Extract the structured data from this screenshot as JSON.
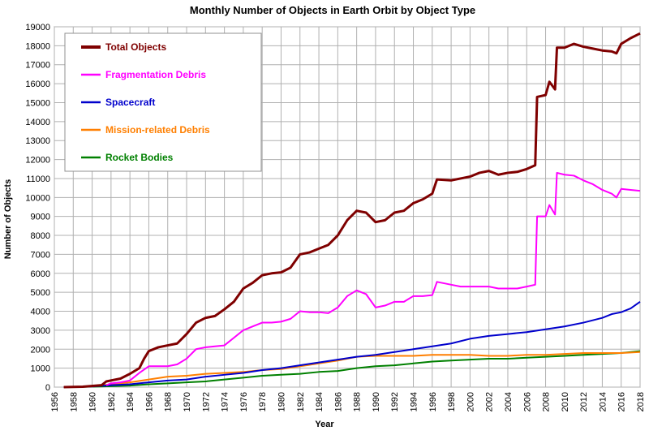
{
  "chart_data": {
    "type": "line",
    "title": "Monthly Number of Objects in Earth Orbit by Object Type",
    "xlabel": "Year",
    "ylabel": "Number of Objects",
    "xlim": [
      1956,
      2018
    ],
    "ylim": [
      0,
      19000
    ],
    "x_ticks": [
      "1956",
      "1958",
      "1960",
      "1962",
      "1964",
      "1966",
      "1968",
      "1970",
      "1972",
      "1974",
      "1976",
      "1978",
      "1980",
      "1982",
      "1984",
      "1986",
      "1988",
      "1990",
      "1992",
      "1994",
      "1996",
      "1998",
      "2000",
      "2002",
      "2004",
      "2006",
      "2008",
      "2010",
      "2012",
      "2014",
      "2016",
      "2018"
    ],
    "y_ticks": [
      "0",
      "1000",
      "2000",
      "3000",
      "4000",
      "5000",
      "6000",
      "7000",
      "8000",
      "9000",
      "10000",
      "11000",
      "12000",
      "13000",
      "14000",
      "15000",
      "16000",
      "17000",
      "18000",
      "19000"
    ],
    "grid": true,
    "legend_position": "top-left",
    "series": [
      {
        "name": "Total Objects",
        "color": "#7f0000",
        "points": [
          [
            1957,
            0
          ],
          [
            1959,
            20
          ],
          [
            1961,
            100
          ],
          [
            1961.5,
            300
          ],
          [
            1962,
            350
          ],
          [
            1963,
            450
          ],
          [
            1964,
            700
          ],
          [
            1965,
            1000
          ],
          [
            1965.5,
            1500
          ],
          [
            1966,
            1900
          ],
          [
            1967,
            2100
          ],
          [
            1968,
            2200
          ],
          [
            1969,
            2300
          ],
          [
            1970,
            2800
          ],
          [
            1971,
            3400
          ],
          [
            1972,
            3650
          ],
          [
            1973,
            3750
          ],
          [
            1974,
            4100
          ],
          [
            1975,
            4500
          ],
          [
            1976,
            5200
          ],
          [
            1977,
            5500
          ],
          [
            1978,
            5900
          ],
          [
            1979,
            6000
          ],
          [
            1980,
            6050
          ],
          [
            1981,
            6300
          ],
          [
            1982,
            7000
          ],
          [
            1983,
            7100
          ],
          [
            1984,
            7300
          ],
          [
            1985,
            7500
          ],
          [
            1986,
            8000
          ],
          [
            1987,
            8800
          ],
          [
            1988,
            9300
          ],
          [
            1989,
            9200
          ],
          [
            1990,
            8700
          ],
          [
            1991,
            8800
          ],
          [
            1992,
            9200
          ],
          [
            1993,
            9300
          ],
          [
            1994,
            9700
          ],
          [
            1995,
            9900
          ],
          [
            1996,
            10200
          ],
          [
            1996.5,
            10950
          ],
          [
            1998,
            10900
          ],
          [
            1999,
            11000
          ],
          [
            2000,
            11100
          ],
          [
            2001,
            11300
          ],
          [
            2002,
            11400
          ],
          [
            2003,
            11200
          ],
          [
            2004,
            11300
          ],
          [
            2005,
            11350
          ],
          [
            2006,
            11500
          ],
          [
            2006.9,
            11700
          ],
          [
            2007.1,
            15300
          ],
          [
            2008,
            15400
          ],
          [
            2008.4,
            16100
          ],
          [
            2009,
            15700
          ],
          [
            2009.2,
            17900
          ],
          [
            2010,
            17900
          ],
          [
            2011,
            18100
          ],
          [
            2012,
            17950
          ],
          [
            2013,
            17850
          ],
          [
            2014,
            17750
          ],
          [
            2015,
            17700
          ],
          [
            2015.5,
            17600
          ],
          [
            2016,
            18100
          ],
          [
            2017,
            18400
          ],
          [
            2018,
            18650
          ]
        ]
      },
      {
        "name": "Fragmentation Debris",
        "color": "#ff00ff",
        "points": [
          [
            1961.5,
            100
          ],
          [
            1962,
            200
          ],
          [
            1963,
            250
          ],
          [
            1964,
            350
          ],
          [
            1965,
            750
          ],
          [
            1966,
            1100
          ],
          [
            1967,
            1100
          ],
          [
            1968,
            1100
          ],
          [
            1969,
            1200
          ],
          [
            1970,
            1500
          ],
          [
            1971,
            2000
          ],
          [
            1972,
            2100
          ],
          [
            1973,
            2150
          ],
          [
            1974,
            2200
          ],
          [
            1975,
            2600
          ],
          [
            1976,
            3000
          ],
          [
            1977,
            3200
          ],
          [
            1978,
            3400
          ],
          [
            1979,
            3400
          ],
          [
            1980,
            3450
          ],
          [
            1981,
            3600
          ],
          [
            1982,
            4000
          ],
          [
            1983,
            3950
          ],
          [
            1984,
            3950
          ],
          [
            1985,
            3900
          ],
          [
            1986,
            4200
          ],
          [
            1987,
            4800
          ],
          [
            1988,
            5100
          ],
          [
            1989,
            4900
          ],
          [
            1990,
            4200
          ],
          [
            1991,
            4300
          ],
          [
            1992,
            4500
          ],
          [
            1993,
            4500
          ],
          [
            1994,
            4800
          ],
          [
            1995,
            4800
          ],
          [
            1996,
            4850
          ],
          [
            1996.5,
            5550
          ],
          [
            1998,
            5400
          ],
          [
            1999,
            5300
          ],
          [
            2000,
            5300
          ],
          [
            2001,
            5300
          ],
          [
            2002,
            5300
          ],
          [
            2003,
            5200
          ],
          [
            2004,
            5200
          ],
          [
            2005,
            5200
          ],
          [
            2006,
            5300
          ],
          [
            2006.9,
            5400
          ],
          [
            2007.1,
            9000
          ],
          [
            2008,
            9000
          ],
          [
            2008.4,
            9600
          ],
          [
            2009,
            9100
          ],
          [
            2009.2,
            11300
          ],
          [
            2010,
            11200
          ],
          [
            2011,
            11150
          ],
          [
            2012,
            10900
          ],
          [
            2013,
            10700
          ],
          [
            2014,
            10400
          ],
          [
            2015,
            10200
          ],
          [
            2015.5,
            10000
          ],
          [
            2016,
            10450
          ],
          [
            2017,
            10400
          ],
          [
            2018,
            10350
          ]
        ]
      },
      {
        "name": "Spacecraft",
        "color": "#0000cc",
        "points": [
          [
            1957,
            0
          ],
          [
            1960,
            30
          ],
          [
            1962,
            100
          ],
          [
            1964,
            150
          ],
          [
            1966,
            250
          ],
          [
            1968,
            350
          ],
          [
            1970,
            400
          ],
          [
            1972,
            550
          ],
          [
            1974,
            650
          ],
          [
            1976,
            750
          ],
          [
            1978,
            900
          ],
          [
            1980,
            1000
          ],
          [
            1982,
            1150
          ],
          [
            1984,
            1300
          ],
          [
            1986,
            1450
          ],
          [
            1988,
            1600
          ],
          [
            1990,
            1700
          ],
          [
            1992,
            1850
          ],
          [
            1994,
            2000
          ],
          [
            1996,
            2150
          ],
          [
            1998,
            2300
          ],
          [
            2000,
            2550
          ],
          [
            2002,
            2700
          ],
          [
            2004,
            2800
          ],
          [
            2006,
            2900
          ],
          [
            2008,
            3050
          ],
          [
            2010,
            3200
          ],
          [
            2012,
            3400
          ],
          [
            2014,
            3650
          ],
          [
            2015,
            3850
          ],
          [
            2016,
            3950
          ],
          [
            2017,
            4150
          ],
          [
            2018,
            4500
          ]
        ]
      },
      {
        "name": "Mission-related Debris",
        "color": "#ff7f00",
        "points": [
          [
            1957,
            0
          ],
          [
            1960,
            30
          ],
          [
            1962,
            150
          ],
          [
            1964,
            250
          ],
          [
            1966,
            400
          ],
          [
            1968,
            550
          ],
          [
            1970,
            600
          ],
          [
            1972,
            700
          ],
          [
            1974,
            750
          ],
          [
            1976,
            800
          ],
          [
            1978,
            900
          ],
          [
            1980,
            950
          ],
          [
            1982,
            1100
          ],
          [
            1984,
            1250
          ],
          [
            1986,
            1400
          ],
          [
            1988,
            1600
          ],
          [
            1990,
            1650
          ],
          [
            1992,
            1650
          ],
          [
            1994,
            1650
          ],
          [
            1996,
            1700
          ],
          [
            1998,
            1700
          ],
          [
            2000,
            1700
          ],
          [
            2002,
            1650
          ],
          [
            2004,
            1650
          ],
          [
            2006,
            1700
          ],
          [
            2008,
            1700
          ],
          [
            2010,
            1750
          ],
          [
            2012,
            1800
          ],
          [
            2014,
            1800
          ],
          [
            2016,
            1800
          ],
          [
            2018,
            1850
          ]
        ]
      },
      {
        "name": "Rocket Bodies",
        "color": "#008000",
        "points": [
          [
            1957,
            0
          ],
          [
            1960,
            20
          ],
          [
            1962,
            50
          ],
          [
            1964,
            80
          ],
          [
            1966,
            150
          ],
          [
            1968,
            200
          ],
          [
            1970,
            250
          ],
          [
            1972,
            300
          ],
          [
            1974,
            400
          ],
          [
            1976,
            500
          ],
          [
            1978,
            600
          ],
          [
            1980,
            650
          ],
          [
            1982,
            700
          ],
          [
            1984,
            800
          ],
          [
            1986,
            850
          ],
          [
            1988,
            1000
          ],
          [
            1990,
            1100
          ],
          [
            1992,
            1150
          ],
          [
            1994,
            1250
          ],
          [
            1996,
            1350
          ],
          [
            1998,
            1400
          ],
          [
            2000,
            1450
          ],
          [
            2002,
            1500
          ],
          [
            2004,
            1500
          ],
          [
            2006,
            1550
          ],
          [
            2008,
            1600
          ],
          [
            2010,
            1650
          ],
          [
            2012,
            1700
          ],
          [
            2014,
            1750
          ],
          [
            2016,
            1800
          ],
          [
            2018,
            1900
          ]
        ]
      }
    ]
  }
}
